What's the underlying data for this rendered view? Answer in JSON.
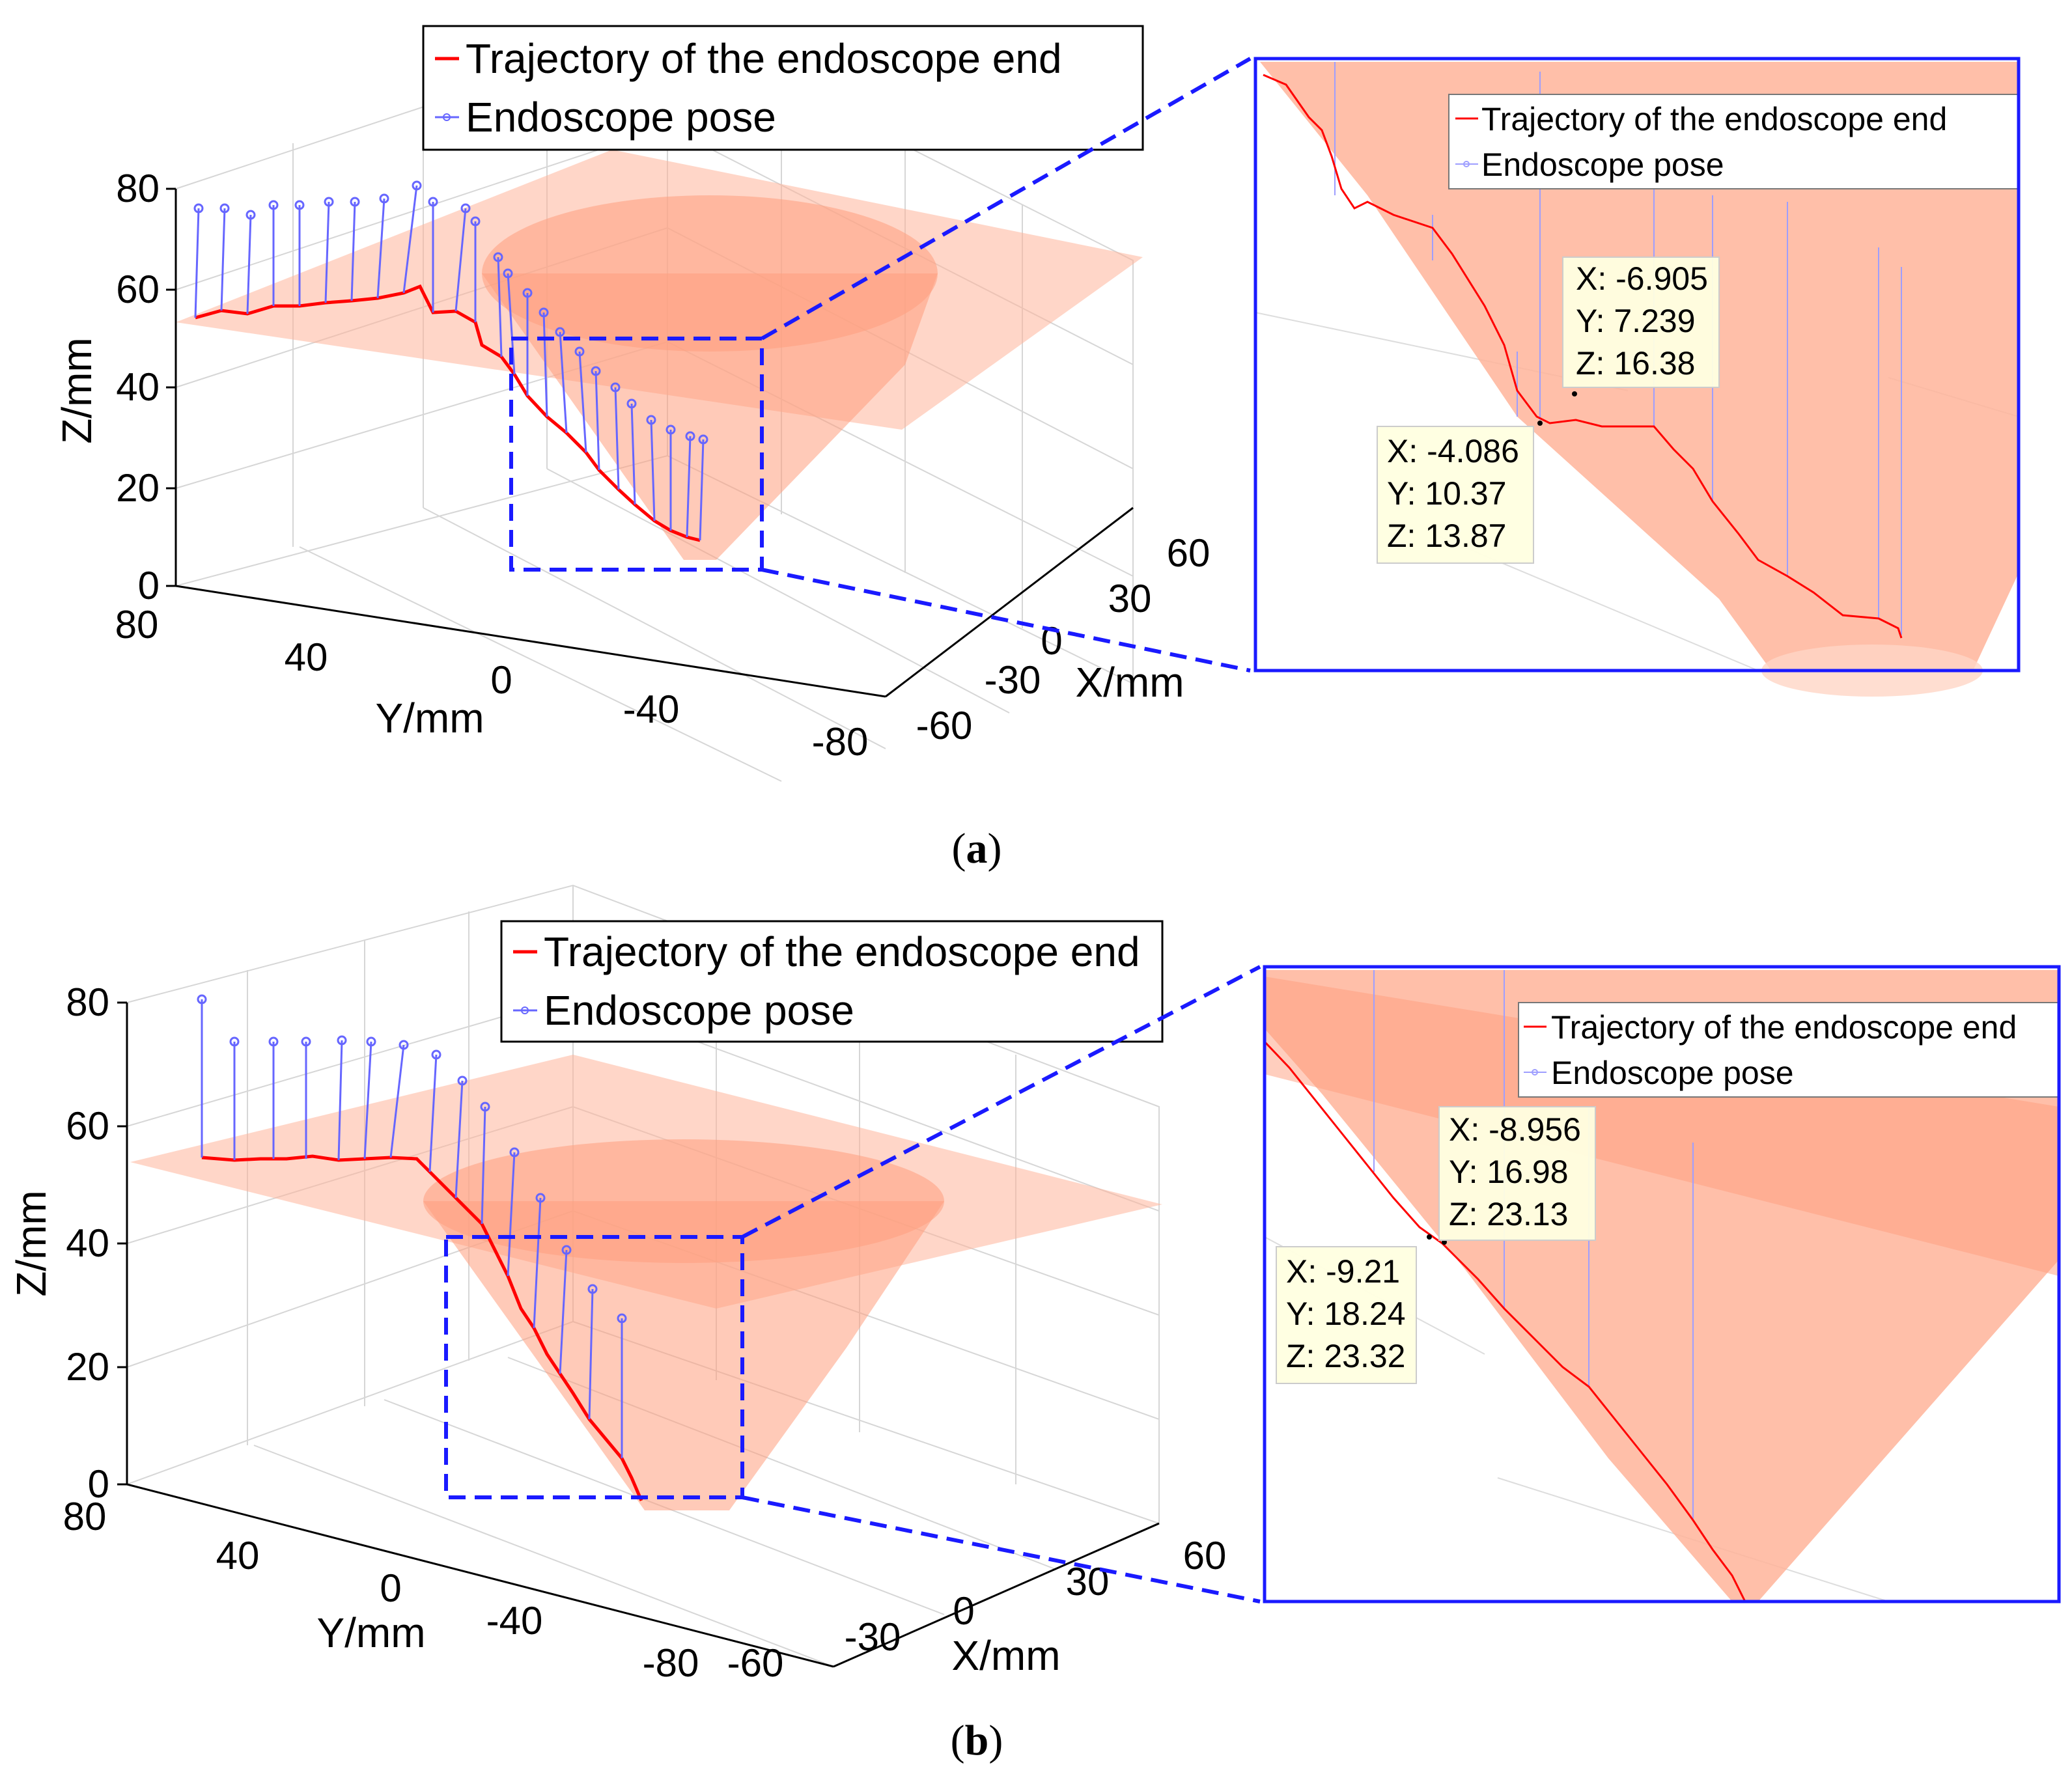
{
  "chart_data": [
    {
      "type": "line",
      "view": "3d",
      "panel_label": "a",
      "xlabel": "X/mm",
      "ylabel": "Y/mm",
      "zlabel": "Z/mm",
      "xticks": [
        "60",
        "30",
        "0",
        "-30",
        "-60"
      ],
      "yticks": [
        "80",
        "40",
        "0",
        "-40",
        "-80"
      ],
      "zticks": [
        "80",
        "60",
        "40",
        "20",
        "0"
      ],
      "xlim": [
        -60,
        60
      ],
      "ylim": [
        -80,
        80
      ],
      "zlim": [
        0,
        80
      ],
      "grid": true,
      "legend_position": "top",
      "series": [
        {
          "name": "Trajectory of the endoscope end",
          "color": "#ff0000"
        },
        {
          "name": "Endoscope pose",
          "color": "#6666ff"
        }
      ],
      "surfaces": {
        "plane_z": 54,
        "cone_bottom_z": 8,
        "color": "#ffb49a"
      },
      "zoom": {
        "legend": [
          "Trajectory of the endoscope end",
          "Endoscope pose"
        ],
        "datatips": [
          {
            "x": "-6.905",
            "y": "7.239",
            "z": "16.38"
          },
          {
            "x": "-4.086",
            "y": "10.37",
            "z": "13.87"
          }
        ]
      }
    },
    {
      "type": "line",
      "view": "3d",
      "panel_label": "b",
      "xlabel": "X/mm",
      "ylabel": "Y/mm",
      "zlabel": "Z/mm",
      "xticks": [
        "60",
        "30",
        "0",
        "-30",
        "-60"
      ],
      "yticks": [
        "80",
        "40",
        "0",
        "-40",
        "-80"
      ],
      "zticks": [
        "80",
        "60",
        "40",
        "20",
        "0"
      ],
      "xlim": [
        -60,
        60
      ],
      "ylim": [
        -80,
        80
      ],
      "zlim": [
        0,
        80
      ],
      "grid": true,
      "legend_position": "top",
      "series": [
        {
          "name": "Trajectory of the endoscope end",
          "color": "#ff0000"
        },
        {
          "name": "Endoscope pose",
          "color": "#6666ff"
        }
      ],
      "surfaces": {
        "plane_z": 54,
        "cone_bottom_z": 2,
        "color": "#ffb49a"
      },
      "zoom": {
        "legend": [
          "Trajectory of the endoscope end",
          "Endoscope pose"
        ],
        "datatips": [
          {
            "x": "-8.956",
            "y": "16.98",
            "z": "23.13"
          },
          {
            "x": "-9.21",
            "y": "18.24",
            "z": "23.32"
          }
        ]
      }
    }
  ],
  "colors": {
    "trajectory": "#ff0000",
    "pose": "#6666ff",
    "surface": "#ffb49a",
    "zoom_frame": "#1a1aff",
    "datatip_bg": "#ffffe0"
  }
}
